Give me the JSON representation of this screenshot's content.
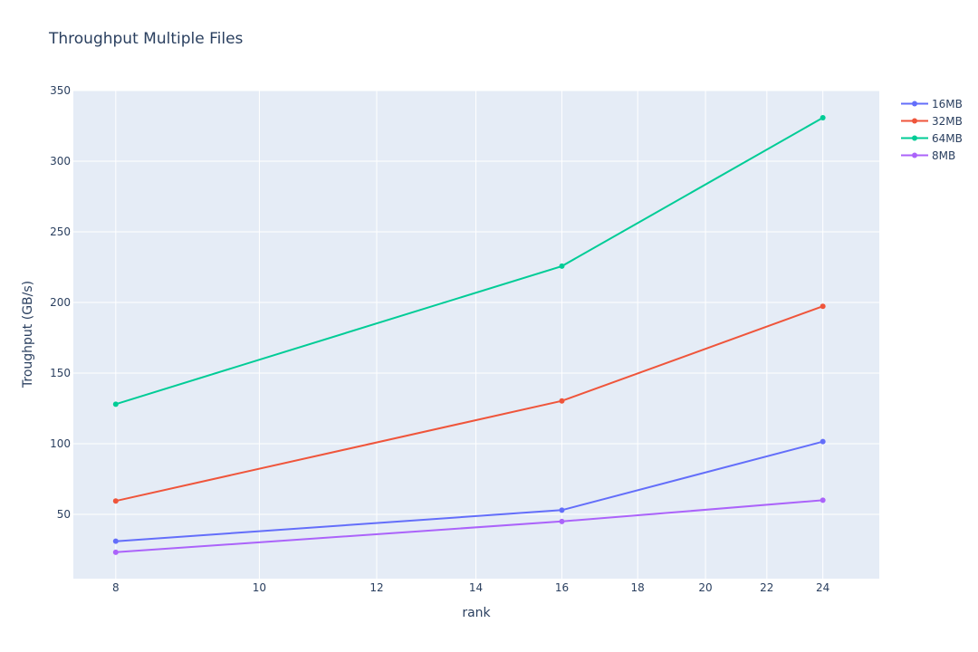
{
  "chart_data": {
    "type": "line",
    "title": "Throughput Multiple Files",
    "xlabel": "rank",
    "ylabel": "Troughput (GB/s)",
    "x_scale": "log",
    "x_ticks": [
      8,
      10,
      12,
      14,
      16,
      18,
      20,
      22,
      24
    ],
    "y_ticks": [
      50,
      100,
      150,
      200,
      250,
      300,
      350
    ],
    "xlim": [
      7.49,
      26.2
    ],
    "ylim": [
      4.5,
      350
    ],
    "grid": true,
    "legend_position": "top-right",
    "x": [
      8,
      16,
      24
    ],
    "series": [
      {
        "name": "16MB",
        "color": "#636efa",
        "values": [
          31.0,
          53.0,
          101.5
        ]
      },
      {
        "name": "32MB",
        "color": "#ef553b",
        "values": [
          59.5,
          130.3,
          197.3
        ]
      },
      {
        "name": "64MB",
        "color": "#00cc96",
        "values": [
          128.0,
          225.7,
          330.8
        ]
      },
      {
        "name": "8MB",
        "color": "#ab63fa",
        "values": [
          23.2,
          45.0,
          60.0
        ]
      }
    ]
  }
}
